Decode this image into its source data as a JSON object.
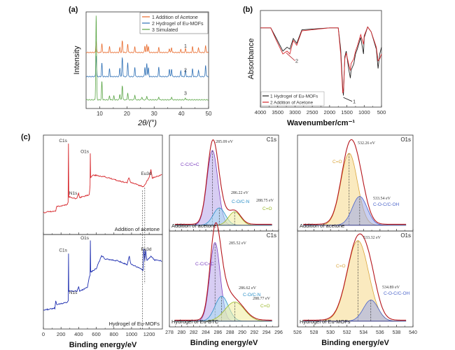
{
  "figure_labels": {
    "a": "(a)",
    "b": "(b)",
    "c": "(c)"
  },
  "chart_data": [
    {
      "id": "a",
      "type": "line",
      "title": "",
      "xlabel": "2θ/(°)",
      "ylabel": "Intensity",
      "xlim": [
        5,
        50
      ],
      "xticks": [
        10,
        20,
        30,
        40,
        50
      ],
      "yticks_shown": false,
      "legend": "top-right",
      "series": [
        {
          "name": "1 Addition of Acetone",
          "color": "#e8692a",
          "curve_label": "1",
          "baseline": 0.58,
          "peaks": [
            [
              8.7,
              0.12
            ],
            [
              10.8,
              0.09
            ],
            [
              13.6,
              0.06
            ],
            [
              17.4,
              0.05
            ],
            [
              18.3,
              0.12
            ],
            [
              20.3,
              0.09
            ],
            [
              22.9,
              0.06
            ],
            [
              26.6,
              0.07
            ],
            [
              27.3,
              0.08
            ],
            [
              27.9,
              0.06
            ],
            [
              31.7,
              0.05
            ],
            [
              35.6,
              0.04
            ],
            [
              36.4,
              0.05
            ],
            [
              39.8,
              0.03
            ],
            [
              41.5,
              0.04
            ],
            [
              44.1,
              0.06
            ],
            [
              46.3,
              0.05
            ],
            [
              48.9,
              0.07
            ]
          ]
        },
        {
          "name": "2 Hydrogel of Eu-MOFs",
          "color": "#2d6fb5",
          "curve_label": "2",
          "baseline": 0.33,
          "peaks": [
            [
              8.7,
              0.22
            ],
            [
              10.8,
              0.14
            ],
            [
              13.6,
              0.08
            ],
            [
              17.4,
              0.09
            ],
            [
              18.3,
              0.2
            ],
            [
              20.3,
              0.15
            ],
            [
              22.9,
              0.1
            ],
            [
              26.6,
              0.1
            ],
            [
              27.3,
              0.14
            ],
            [
              27.9,
              0.09
            ],
            [
              31.7,
              0.1
            ],
            [
              35.6,
              0.08
            ],
            [
              36.4,
              0.08
            ],
            [
              39.8,
              0.06
            ],
            [
              41.5,
              0.07
            ],
            [
              44.1,
              0.08
            ],
            [
              46.3,
              0.07
            ],
            [
              48.9,
              0.12
            ]
          ]
        },
        {
          "name": "3 Simulated",
          "color": "#5aa545",
          "curve_label": "3",
          "baseline": 0.09,
          "peaks": [
            [
              8.7,
              0.88
            ],
            [
              10.8,
              0.19
            ],
            [
              13.6,
              0.04
            ],
            [
              15.2,
              0.04
            ],
            [
              17.4,
              0.06
            ],
            [
              18.3,
              0.15
            ],
            [
              20.3,
              0.07
            ],
            [
              22.9,
              0.05
            ],
            [
              25.5,
              0.03
            ],
            [
              27.3,
              0.04
            ],
            [
              31.7,
              0.03
            ],
            [
              36.4,
              0.03
            ],
            [
              41.5,
              0.02
            ]
          ]
        }
      ]
    },
    {
      "id": "b",
      "type": "line",
      "title": "",
      "xlabel": "Wavenumber/cm⁻¹",
      "ylabel": "Absorbance",
      "xlim": [
        4000,
        500
      ],
      "xticks": [
        4000,
        3500,
        3000,
        2500,
        2000,
        1500,
        1000,
        500
      ],
      "yticks_shown": false,
      "legend": "bottom-left",
      "annotations": [
        {
          "text": "2",
          "x": 3200
        },
        {
          "text": "1",
          "x": 1600
        }
      ],
      "series": [
        {
          "name": "1 Hydrogel of Eu-MOFs",
          "color": "#222222",
          "points": [
            [
              4000,
              0.82
            ],
            [
              3700,
              0.82
            ],
            [
              3550,
              0.72
            ],
            [
              3350,
              0.58
            ],
            [
              3230,
              0.62
            ],
            [
              3150,
              0.6
            ],
            [
              3050,
              0.71
            ],
            [
              2950,
              0.66
            ],
            [
              2800,
              0.8
            ],
            [
              2000,
              0.82
            ],
            [
              1750,
              0.82
            ],
            [
              1680,
              0.6
            ],
            [
              1620,
              0.2
            ],
            [
              1600,
              0.12
            ],
            [
              1560,
              0.52
            ],
            [
              1520,
              0.58
            ],
            [
              1450,
              0.4
            ],
            [
              1400,
              0.3
            ],
            [
              1380,
              0.38
            ],
            [
              1300,
              0.45
            ],
            [
              1250,
              0.55
            ],
            [
              1200,
              0.6
            ],
            [
              1100,
              0.72
            ],
            [
              1020,
              0.55
            ],
            [
              1000,
              0.72
            ],
            [
              900,
              0.83
            ],
            [
              800,
              0.78
            ],
            [
              650,
              0.6
            ],
            [
              600,
              0.4
            ],
            [
              550,
              0.55
            ],
            [
              500,
              0.62
            ]
          ]
        },
        {
          "name": "2 Addition of Acetone",
          "color": "#d6262b",
          "points": [
            [
              4000,
              0.82
            ],
            [
              3700,
              0.82
            ],
            [
              3550,
              0.7
            ],
            [
              3350,
              0.55
            ],
            [
              3230,
              0.58
            ],
            [
              3150,
              0.55
            ],
            [
              3050,
              0.69
            ],
            [
              2950,
              0.64
            ],
            [
              2800,
              0.79
            ],
            [
              2000,
              0.82
            ],
            [
              1750,
              0.82
            ],
            [
              1680,
              0.55
            ],
            [
              1620,
              0.15
            ],
            [
              1600,
              0.16
            ],
            [
              1560,
              0.5
            ],
            [
              1520,
              0.56
            ],
            [
              1450,
              0.45
            ],
            [
              1400,
              0.38
            ],
            [
              1380,
              0.45
            ],
            [
              1300,
              0.5
            ],
            [
              1250,
              0.58
            ],
            [
              1200,
              0.63
            ],
            [
              1100,
              0.75
            ],
            [
              1020,
              0.65
            ],
            [
              1000,
              0.74
            ],
            [
              900,
              0.83
            ],
            [
              800,
              0.78
            ],
            [
              650,
              0.62
            ],
            [
              600,
              0.48
            ],
            [
              550,
              0.5
            ],
            [
              500,
              0.55
            ]
          ]
        }
      ]
    },
    {
      "id": "c-survey",
      "type": "line",
      "xlabel": "Binding energy/eV",
      "xlim": [
        0,
        1350
      ],
      "xticks": [
        0,
        200,
        400,
        600,
        800,
        1000,
        1200
      ],
      "panels": [
        {
          "label": "Addition of acetone",
          "color": "#d6262b",
          "peak_labels": [
            {
              "text": "C1s",
              "x": 285
            },
            {
              "text": "O1s",
              "x": 532
            },
            {
              "text": "N1s",
              "x": 400
            },
            {
              "text": "Eu3d",
              "x": 1135
            }
          ],
          "points": [
            [
              0,
              0.22
            ],
            [
              140,
              0.24
            ],
            [
              150,
              0.28
            ],
            [
              270,
              0.3
            ],
            [
              280,
              0.33
            ],
            [
              284,
              0.92
            ],
            [
              288,
              0.38
            ],
            [
              380,
              0.36
            ],
            [
              400,
              0.42
            ],
            [
              410,
              0.37
            ],
            [
              520,
              0.4
            ],
            [
              530,
              0.5
            ],
            [
              532,
              0.82
            ],
            [
              536,
              0.57
            ],
            [
              560,
              0.6
            ],
            [
              700,
              0.58
            ],
            [
              850,
              0.54
            ],
            [
              950,
              0.52
            ],
            [
              970,
              0.57
            ],
            [
              985,
              0.53
            ],
            [
              1100,
              0.49
            ],
            [
              1135,
              0.48
            ],
            [
              1165,
              0.52
            ],
            [
              1200,
              0.58
            ],
            [
              1220,
              0.65
            ],
            [
              1235,
              0.57
            ],
            [
              1350,
              0.6
            ]
          ]
        },
        {
          "label": "Hydrogel of Eu-MOFs",
          "color": "#1f2fb0",
          "peak_labels": [
            {
              "text": "C1s",
              "x": 285
            },
            {
              "text": "O1s",
              "x": 532
            },
            {
              "text": "N1s",
              "x": 400
            },
            {
              "text": "Eu3d",
              "x": 1135
            }
          ],
          "points": [
            [
              0,
              0.2
            ],
            [
              130,
              0.22
            ],
            [
              140,
              0.3
            ],
            [
              150,
              0.26
            ],
            [
              270,
              0.28
            ],
            [
              282,
              0.3
            ],
            [
              285,
              0.8
            ],
            [
              288,
              0.4
            ],
            [
              380,
              0.4
            ],
            [
              400,
              0.45
            ],
            [
              410,
              0.4
            ],
            [
              500,
              0.44
            ],
            [
              520,
              0.55
            ],
            [
              530,
              0.57
            ],
            [
              533,
              0.94
            ],
            [
              537,
              0.6
            ],
            [
              600,
              0.64
            ],
            [
              640,
              0.73
            ],
            [
              660,
              0.78
            ],
            [
              700,
              0.74
            ],
            [
              850,
              0.72
            ],
            [
              950,
              0.68
            ],
            [
              975,
              0.77
            ],
            [
              990,
              0.69
            ],
            [
              1100,
              0.64
            ],
            [
              1130,
              0.62
            ],
            [
              1138,
              0.85
            ],
            [
              1150,
              0.72
            ],
            [
              1160,
              0.84
            ],
            [
              1175,
              0.72
            ],
            [
              1220,
              0.77
            ],
            [
              1260,
              0.73
            ],
            [
              1350,
              0.72
            ]
          ]
        }
      ]
    },
    {
      "id": "c-C1s",
      "type": "area",
      "xlabel": "Binding energy/eV",
      "xlim": [
        278,
        296
      ],
      "xticks": [
        278,
        280,
        282,
        284,
        286,
        288,
        290,
        292,
        294,
        296
      ],
      "region": "C1s",
      "panels": [
        {
          "label": "Addition of acetone",
          "components": [
            {
              "name": "C-C/C=C",
              "center": 285.09,
              "height": 0.78,
              "width": 0.9,
              "color": "#7c3fbf",
              "fill": "#b7a4ea",
              "peak_label": "285.09 eV"
            },
            {
              "name": "C-O/C-N",
              "center": 286.22,
              "height": 0.18,
              "width": 1.0,
              "color": "#2b8fc7",
              "fill": "#a8dcf3",
              "peak_label": "286.22 eV"
            },
            {
              "name": "C=O",
              "center": 288.75,
              "height": 0.14,
              "width": 1.0,
              "color": "#9ab82a",
              "fill": "#f1ec9a",
              "peak_label": "288.75 eV"
            }
          ],
          "envelope_color": "#b5151b"
        },
        {
          "label": "Hydrogel of Eu-BTC",
          "components": [
            {
              "name": "C-C/C=C",
              "center": 285.52,
              "height": 0.82,
              "width": 0.85,
              "color": "#7c3fbf",
              "fill": "#b7a4ea",
              "peak_label": "285.52 eV"
            },
            {
              "name": "C-O/C-N",
              "center": 286.62,
              "height": 0.26,
              "width": 1.1,
              "color": "#2b8fc7",
              "fill": "#a8dcf3",
              "peak_label": "286.62 eV"
            },
            {
              "name": "C=O",
              "center": 288.77,
              "height": 0.2,
              "width": 1.6,
              "color": "#9ab82a",
              "fill": "#f1ec9a",
              "peak_label": "288.77 eV"
            }
          ],
          "envelope_color": "#b5151b"
        }
      ]
    },
    {
      "id": "c-O1s",
      "type": "area",
      "xlabel": "Binding energy/eV",
      "xlim": [
        526,
        540
      ],
      "xticks": [
        526,
        528,
        530,
        532,
        534,
        536,
        538,
        540
      ],
      "region": "O1s",
      "panels": [
        {
          "label": "Addition of acetone",
          "components": [
            {
              "name": "C=O",
              "center": 532.26,
              "height": 0.75,
              "width": 1.0,
              "color": "#d9a43a",
              "fill": "#f5d98a",
              "peak_label": "532.26 eV"
            },
            {
              "name": "C-O-C/C-OH",
              "center": 533.54,
              "height": 0.3,
              "width": 0.9,
              "color": "#4a63c9",
              "fill": "#9aa8e8",
              "peak_label": "533.54 eV"
            }
          ],
          "envelope_color": "#b5151b"
        },
        {
          "label": "Hydrogel of Eu-MOFs",
          "components": [
            {
              "name": "C=O",
              "center": 533.32,
              "height": 0.84,
              "width": 1.3,
              "color": "#d9a43a",
              "fill": "#f5d98a",
              "peak_label": "533.32 eV"
            },
            {
              "name": "C-O-C/C-OH",
              "center": 534.89,
              "height": 0.22,
              "width": 0.9,
              "color": "#4a63c9",
              "fill": "#9aa8e8",
              "peak_label": "534.89 eV"
            }
          ],
          "envelope_color": "#b5151b"
        }
      ]
    }
  ]
}
